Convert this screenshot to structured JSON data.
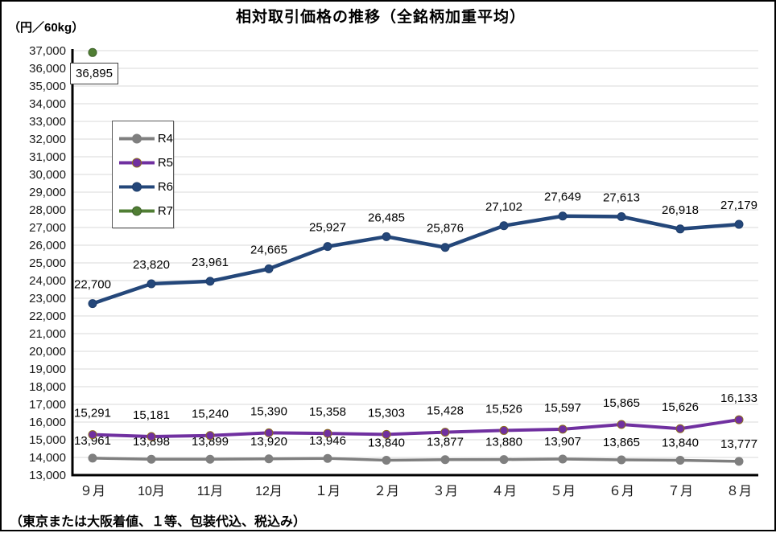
{
  "chart_data": {
    "type": "line",
    "title": "相対取引価格の推移（全銘柄加重平均）",
    "unit_label": "（円／60kg）",
    "footnote": "（東京または大阪着値、１等、包装代込、税込み）",
    "categories": [
      "９月",
      "10月",
      "11月",
      "12月",
      "１月",
      "２月",
      "３月",
      "４月",
      "５月",
      "６月",
      "７月",
      "８月"
    ],
    "ylim": [
      13000,
      37000
    ],
    "ytick_step": 1000,
    "grid": true,
    "legend_position": "upper-left-inside",
    "legend_entries": [
      "R4",
      "R5",
      "R6",
      "R7"
    ],
    "series": [
      {
        "name": "R4",
        "color": "#7F7F7F",
        "values": [
          13961,
          13898,
          13899,
          13920,
          13946,
          13840,
          13877,
          13880,
          13907,
          13865,
          13840,
          13777
        ]
      },
      {
        "name": "R5",
        "color": "#7030A0",
        "marker_stroke": "#8A6B1E",
        "values": [
          15291,
          15181,
          15240,
          15390,
          15358,
          15303,
          15428,
          15526,
          15597,
          15865,
          15626,
          16133
        ]
      },
      {
        "name": "R6",
        "color": "#24477A",
        "marker_stroke": "#1F3E6B",
        "values": [
          22700,
          23820,
          23961,
          24665,
          25927,
          26485,
          25876,
          27102,
          27649,
          27613,
          26918,
          27179
        ]
      },
      {
        "name": "R7",
        "color": "#507E34",
        "marker_stroke": "#3E622A",
        "values": [
          36895,
          null,
          null,
          null,
          null,
          null,
          null,
          null,
          null,
          null,
          null,
          null
        ]
      }
    ],
    "annotation": {
      "text": "36,895",
      "series": "R7",
      "category": "９月"
    }
  }
}
